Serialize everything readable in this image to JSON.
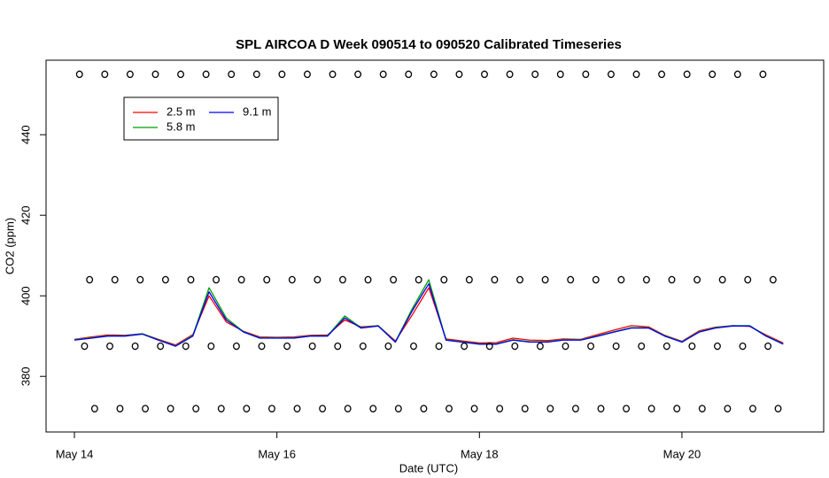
{
  "chart_data": {
    "type": "line",
    "title": "SPL AIRCOA D  Week 090514 to 090520  Calibrated Timeseries",
    "xlabel": "Date (UTC)",
    "ylabel": "CO2 (ppm)",
    "xlim": [
      13.72,
      21.4
    ],
    "ylim": [
      366.2,
      458.5
    ],
    "xticks": [
      {
        "value": 14,
        "label": "May 14"
      },
      {
        "value": 16,
        "label": "May 16"
      },
      {
        "value": 18,
        "label": "May 18"
      },
      {
        "value": 20,
        "label": "May 20"
      }
    ],
    "yticks": [
      380,
      400,
      420,
      440
    ],
    "legend": "top-left",
    "x": [
      14,
      14.17,
      14.33,
      14.5,
      14.67,
      14.83,
      15,
      15.17,
      15.33,
      15.5,
      15.67,
      15.83,
      16,
      16.17,
      16.33,
      16.5,
      16.67,
      16.83,
      17,
      17.17,
      17.33,
      17.5,
      17.67,
      17.83,
      18,
      18.17,
      18.33,
      18.5,
      18.67,
      18.83,
      19,
      19.17,
      19.33,
      19.5,
      19.67,
      19.83,
      20,
      20.17,
      20.33,
      20.5,
      20.67,
      20.83,
      21
    ],
    "series": [
      {
        "name": "2.5 m",
        "color": "#ff0000",
        "values": [
          389.2,
          389.8,
          390.3,
          390.2,
          390.6,
          389.2,
          387.8,
          390.4,
          400,
          393.5,
          391.2,
          389.8,
          389.7,
          389.8,
          390.2,
          390.3,
          394,
          392.3,
          392.6,
          388.8,
          395,
          402,
          389.3,
          388.8,
          388.3,
          388.4,
          389.5,
          389,
          388.9,
          389.3,
          389.2,
          390.4,
          391.5,
          392.6,
          392.3,
          390.2,
          388.7,
          391.3,
          392.2,
          392.6,
          392.4,
          390.3,
          388.3
        ]
      },
      {
        "name": "5.8 m",
        "color": "#00a000",
        "values": [
          389.1,
          389.6,
          390.1,
          390.1,
          390.6,
          389.1,
          387.6,
          390.2,
          402,
          394.5,
          391.1,
          389.6,
          389.6,
          389.6,
          390.1,
          390.1,
          395,
          392.1,
          392.6,
          388.6,
          396.5,
          404,
          389.1,
          388.6,
          388.1,
          388.1,
          389.1,
          388.6,
          388.6,
          389.1,
          389.1,
          390.1,
          391.1,
          392.1,
          392.1,
          390.1,
          388.6,
          391.1,
          392.1,
          392.6,
          392.6,
          390.1,
          388.1
        ]
      },
      {
        "name": "9.1 m",
        "color": "#0000ff",
        "values": [
          389,
          389.5,
          390,
          390,
          390.5,
          389,
          387.5,
          390,
          401,
          394,
          391,
          389.5,
          389.5,
          389.5,
          390,
          390,
          394.5,
          392,
          392.5,
          388.5,
          396,
          403,
          389,
          388.5,
          388,
          388,
          389,
          388.5,
          388.5,
          389,
          389,
          390,
          391,
          392,
          392,
          390,
          388.5,
          391,
          392,
          392.5,
          392.5,
          390,
          388
        ]
      }
    ],
    "points": {
      "x": [
        14.05,
        14.3,
        14.55,
        14.8,
        15.05,
        15.3,
        15.55,
        15.8,
        16.05,
        16.3,
        16.55,
        16.8,
        17.05,
        17.3,
        17.55,
        17.8,
        18.05,
        18.3,
        18.55,
        18.8,
        19.05,
        19.3,
        19.55,
        19.8,
        20.05,
        20.3,
        20.55,
        20.8,
        14.15,
        14.4,
        14.65,
        14.9,
        15.15,
        15.4,
        15.65,
        15.9,
        16.15,
        16.4,
        16.65,
        16.9,
        17.15,
        17.4,
        17.65,
        17.9,
        18.15,
        18.4,
        18.65,
        18.9,
        19.15,
        19.4,
        19.65,
        19.9,
        20.15,
        20.4,
        20.65,
        20.9,
        14.1,
        14.35,
        14.6,
        14.85,
        15.1,
        15.35,
        15.6,
        15.85,
        16.1,
        16.35,
        16.6,
        16.85,
        17.1,
        17.35,
        17.6,
        17.85,
        18.1,
        18.35,
        18.6,
        18.85,
        19.1,
        19.35,
        19.6,
        19.85,
        20.1,
        20.35,
        20.6,
        20.85,
        14.2,
        14.45,
        14.7,
        14.95,
        15.2,
        15.45,
        15.7,
        15.95,
        16.2,
        16.45,
        16.7,
        16.95,
        17.2,
        17.45,
        17.7,
        17.95,
        18.2,
        18.45,
        18.7,
        18.95,
        19.2,
        19.45,
        19.7,
        19.95,
        20.2,
        20.45,
        20.7,
        20.95
      ],
      "values": [
        455,
        455,
        455,
        455,
        455,
        455,
        455,
        455,
        455,
        455,
        455,
        455,
        455,
        455,
        455,
        455,
        455,
        455,
        455,
        455,
        455,
        455,
        455,
        455,
        455,
        455,
        455,
        455,
        404,
        404,
        404,
        404,
        404,
        404,
        404,
        404,
        404,
        404,
        404,
        404,
        404,
        404,
        404,
        404,
        404,
        404,
        404,
        404,
        404,
        404,
        404,
        404,
        404,
        404,
        404,
        404,
        387.5,
        387.5,
        387.5,
        387.5,
        387.5,
        387.5,
        387.5,
        387.5,
        387.5,
        387.5,
        387.5,
        387.5,
        387.5,
        387.5,
        387.5,
        387.5,
        387.5,
        387.5,
        387.5,
        387.5,
        387.5,
        387.5,
        387.5,
        387.5,
        387.5,
        387.5,
        387.5,
        387.5,
        372,
        372,
        372,
        372,
        372,
        372,
        372,
        372,
        372,
        372,
        372,
        372,
        372,
        372,
        372,
        372,
        372,
        372,
        372,
        372,
        372,
        372,
        372,
        372,
        372,
        372,
        372,
        372
      ]
    }
  }
}
